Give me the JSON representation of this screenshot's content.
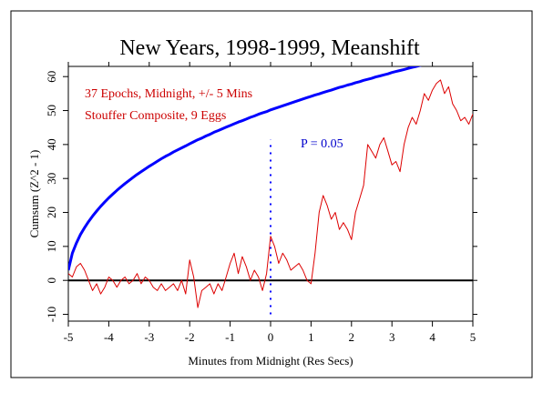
{
  "chart_data": {
    "type": "line",
    "title": "New Years, 1998-1999, Meanshift",
    "xlabel": "Minutes from Midnight (Res Secs)",
    "ylabel": "Cumsum (Z^2 - 1)",
    "xlim": [
      -5,
      5
    ],
    "ylim": [
      -12,
      63
    ],
    "xticks": [
      -5,
      -4,
      -3,
      -2,
      -1,
      0,
      1,
      2,
      3,
      4,
      5
    ],
    "yticks": [
      -10,
      0,
      10,
      20,
      30,
      40,
      50,
      60
    ],
    "xtick_labels": [
      "-5",
      "-4",
      "-3",
      "-2",
      "-1",
      "0",
      "1",
      "2",
      "3",
      "4",
      "5"
    ],
    "ytick_labels": [
      "-10",
      "0",
      "10",
      "20",
      "30",
      "40",
      "50",
      "60"
    ],
    "annotations": [
      {
        "text": "37 Epochs, Midnight, +/- 5 Mins",
        "color": "#cc0000"
      },
      {
        "text": "Stouffer Composite, 9 Eggs",
        "color": "#cc0000"
      },
      {
        "text": "P = 0.05",
        "color": "#0000cc"
      }
    ],
    "reference_line": {
      "y": 0,
      "color": "#000000"
    },
    "marker_line": {
      "x": 0,
      "y_range": [
        -10,
        41.5
      ],
      "style": "dotted",
      "color": "#0000ff"
    },
    "series": [
      {
        "color": "#dd0000",
        "x": [
          -5.0,
          -4.9,
          -4.8,
          -4.7,
          -4.6,
          -4.5,
          -4.4,
          -4.3,
          -4.2,
          -4.1,
          -4.0,
          -3.9,
          -3.8,
          -3.7,
          -3.6,
          -3.5,
          -3.4,
          -3.3,
          -3.2,
          -3.1,
          -3.0,
          -2.9,
          -2.8,
          -2.7,
          -2.6,
          -2.5,
          -2.4,
          -2.3,
          -2.2,
          -2.1,
          -2.0,
          -1.9,
          -1.8,
          -1.7,
          -1.6,
          -1.5,
          -1.4,
          -1.3,
          -1.2,
          -1.1,
          -1.0,
          -0.9,
          -0.8,
          -0.7,
          -0.6,
          -0.5,
          -0.4,
          -0.3,
          -0.2,
          -0.1,
          0.0,
          0.1,
          0.2,
          0.3,
          0.4,
          0.5,
          0.6,
          0.7,
          0.8,
          0.9,
          1.0,
          1.1,
          1.2,
          1.3,
          1.4,
          1.5,
          1.6,
          1.7,
          1.8,
          1.9,
          2.0,
          2.1,
          2.2,
          2.3,
          2.4,
          2.5,
          2.6,
          2.7,
          2.8,
          2.9,
          3.0,
          3.1,
          3.2,
          3.3,
          3.4,
          3.5,
          3.6,
          3.7,
          3.8,
          3.9,
          4.0,
          4.1,
          4.2,
          4.3,
          4.4,
          4.5,
          4.6,
          4.7,
          4.8,
          4.9,
          5.0
        ],
        "y": [
          2,
          1,
          4,
          5,
          3,
          0,
          -3,
          -1,
          -4,
          -2,
          1,
          0,
          -2,
          0,
          1,
          -1,
          0,
          2,
          -1,
          1,
          0,
          -2,
          -3,
          -1,
          -3,
          -2,
          -1,
          -3,
          0,
          -4,
          6,
          1,
          -8,
          -3,
          -2,
          -1,
          -4,
          -1,
          -3,
          1,
          5,
          8,
          2,
          7,
          4,
          0,
          3,
          1,
          -3,
          2,
          13,
          10,
          5,
          8,
          6,
          3,
          4,
          5,
          3,
          0,
          -1,
          8,
          20,
          25,
          22,
          18,
          20,
          15,
          17,
          15,
          12,
          20,
          24,
          28,
          40,
          38,
          36,
          40,
          42,
          38,
          34,
          35,
          32,
          40,
          45,
          48,
          46,
          50,
          55,
          53,
          56,
          58,
          59,
          55,
          57,
          52,
          50,
          47,
          48,
          46,
          49
        ]
      },
      {
        "name": "P = 0.05",
        "color": "#0000ff",
        "x": [
          -5.0,
          -4.9,
          -4.8,
          -4.7,
          -4.6,
          -4.5,
          -4.4,
          -4.3,
          -4.2,
          -4.1,
          -4.0,
          -3.9,
          -3.8,
          -3.7,
          -3.6,
          -3.5,
          -3.4,
          -3.3,
          -3.2,
          -3.1,
          -3.0,
          -2.9,
          -2.8,
          -2.7,
          -2.6,
          -2.5,
          -2.4,
          -2.3,
          -2.2,
          -2.1,
          -2.0,
          -1.9,
          -1.8,
          -1.7,
          -1.6,
          -1.5,
          -1.4,
          -1.3,
          -1.2,
          -1.1,
          -1.0,
          -0.9,
          -0.8,
          -0.7,
          -0.6,
          -0.5,
          -0.4,
          -0.3,
          -0.2,
          -0.1,
          0.0,
          0.1,
          0.2,
          0.3,
          0.4,
          0.5,
          0.6,
          0.7,
          0.8,
          0.9,
          1.0,
          1.1,
          1.2,
          1.3,
          1.4,
          1.5,
          1.6,
          1.7,
          1.8,
          1.9,
          2.0,
          2.1,
          2.2,
          2.3,
          2.4,
          2.5,
          2.6,
          2.7,
          2.8,
          2.9,
          3.0,
          3.1,
          3.2,
          3.3,
          3.4,
          3.5,
          3.6,
          3.7,
          3.8,
          3.9,
          4.0,
          4.1,
          4.2,
          4.3,
          4.4,
          4.5,
          4.6,
          4.7,
          4.8,
          4.9,
          5.0
        ],
        "y": [
          3,
          8,
          11,
          13.5,
          15.5,
          17.3,
          18.9,
          20.4,
          21.8,
          23.1,
          24.3,
          25.4,
          26.5,
          27.5,
          28.5,
          29.4,
          30.3,
          31.2,
          32.0,
          32.8,
          33.6,
          34.3,
          35.1,
          35.8,
          36.5,
          37.1,
          37.8,
          38.4,
          39.0,
          39.6,
          40.2,
          40.8,
          41.4,
          41.9,
          42.5,
          43.0,
          43.6,
          44.1,
          44.6,
          45.1,
          45.6,
          46.1,
          46.6,
          47.0,
          47.5,
          48.0,
          48.4,
          48.9,
          49.3,
          49.7,
          50.2,
          50.6,
          51.0,
          51.4,
          51.8,
          52.2,
          52.6,
          53.0,
          53.4,
          53.8,
          54.2,
          54.6,
          54.9,
          55.3,
          55.7,
          56.0,
          56.4,
          56.8,
          57.1,
          57.5,
          57.8,
          58.2,
          58.5,
          58.9,
          59.2,
          59.5,
          59.9,
          60.2,
          60.5,
          60.8,
          61.2,
          61.5,
          61.8,
          62.1,
          62.4,
          62.7,
          63.0,
          63.3,
          63.6,
          63.9,
          64.2,
          64.5,
          64.8,
          65.1,
          65.4,
          65.7,
          66.0,
          66.2,
          66.5,
          66.8,
          67.1
        ]
      }
    ]
  }
}
